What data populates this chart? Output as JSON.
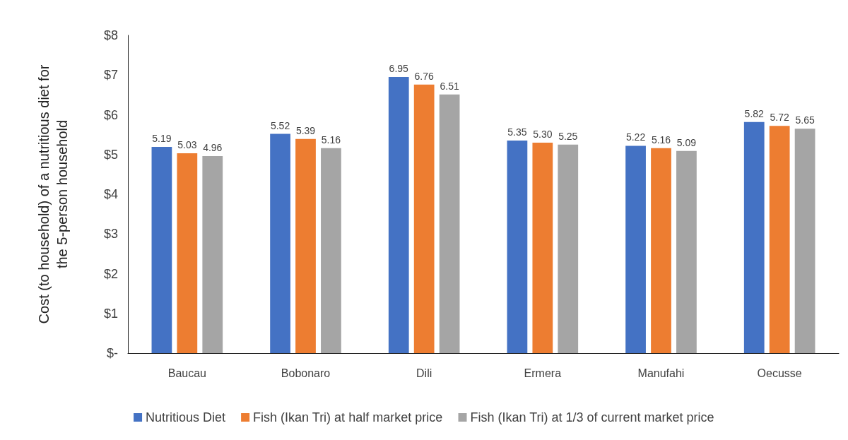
{
  "chart_data": {
    "type": "bar",
    "ylabel": "Cost (to household) of a nutritious diet for\nthe 5-person household",
    "categories": [
      "Baucau",
      "Bobonaro",
      "Dili",
      "Ermera",
      "Manufahi",
      "Oecusse"
    ],
    "series": [
      {
        "name": "Nutritious Diet",
        "color": "#4472c4",
        "values": [
          5.19,
          5.52,
          6.95,
          5.35,
          5.22,
          5.82
        ],
        "value_labels": [
          "5.19",
          "5.52",
          "6.95",
          "5.35",
          "5.22",
          "5.82"
        ]
      },
      {
        "name": "Fish (Ikan Tri) at half market price",
        "color": "#ed7d31",
        "values": [
          5.03,
          5.39,
          6.76,
          5.3,
          5.16,
          5.72
        ],
        "value_labels": [
          "5.03",
          "5.39",
          "6.76",
          "5.30",
          "5.16",
          "5.72"
        ]
      },
      {
        "name": "Fish (Ikan Tri) at 1/3 of current market price",
        "color": "#a5a5a5",
        "values": [
          4.96,
          5.16,
          6.51,
          5.25,
          5.09,
          5.65
        ],
        "value_labels": [
          "4.96",
          "5.16",
          "6.51",
          "5.25",
          "5.09",
          "5.65"
        ]
      }
    ],
    "ylim": [
      0,
      8
    ],
    "yticks": [
      {
        "value": 0,
        "label": "$-"
      },
      {
        "value": 1,
        "label": "$1"
      },
      {
        "value": 2,
        "label": "$2"
      },
      {
        "value": 3,
        "label": "$3"
      },
      {
        "value": 4,
        "label": "$4"
      },
      {
        "value": 5,
        "label": "$5"
      },
      {
        "value": 6,
        "label": "$6"
      },
      {
        "value": 7,
        "label": "$7"
      },
      {
        "value": 8,
        "label": "$8"
      }
    ],
    "grid": false,
    "legend": "bottom"
  }
}
